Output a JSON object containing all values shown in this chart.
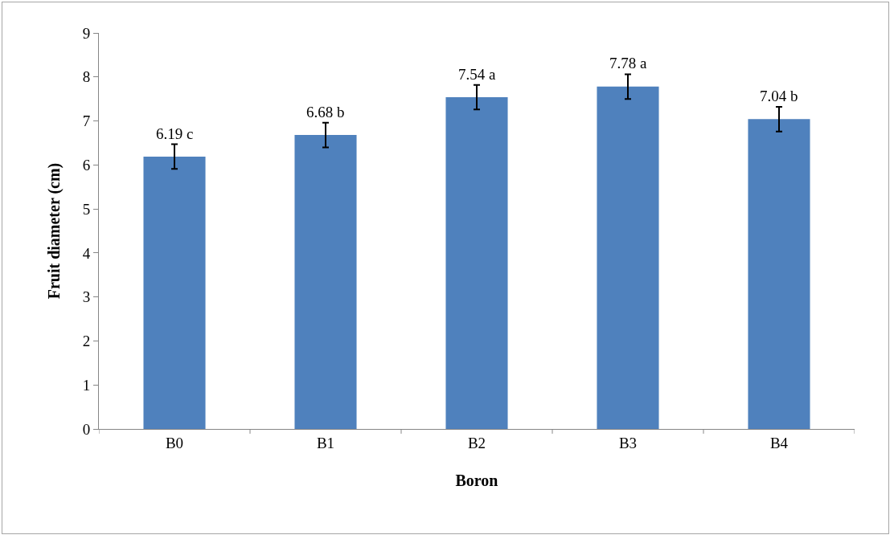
{
  "chart_data": {
    "type": "bar",
    "xlabel": "Boron",
    "ylabel": "Fruit diameter (cm)",
    "categories": [
      "B0",
      "B1",
      "B2",
      "B3",
      "B4"
    ],
    "values": [
      6.19,
      6.68,
      7.54,
      7.78,
      7.04
    ],
    "value_labels": [
      "6.19 c",
      "6.68 b",
      "7.54 a",
      "7.78 a",
      "7.04 b"
    ],
    "errors": [
      0.28,
      0.28,
      0.28,
      0.28,
      0.28
    ],
    "color": "#4f81bd",
    "ylim": [
      0,
      9
    ],
    "yticks": [
      0,
      1,
      2,
      3,
      4,
      5,
      6,
      7,
      8,
      9
    ],
    "grid": false
  }
}
